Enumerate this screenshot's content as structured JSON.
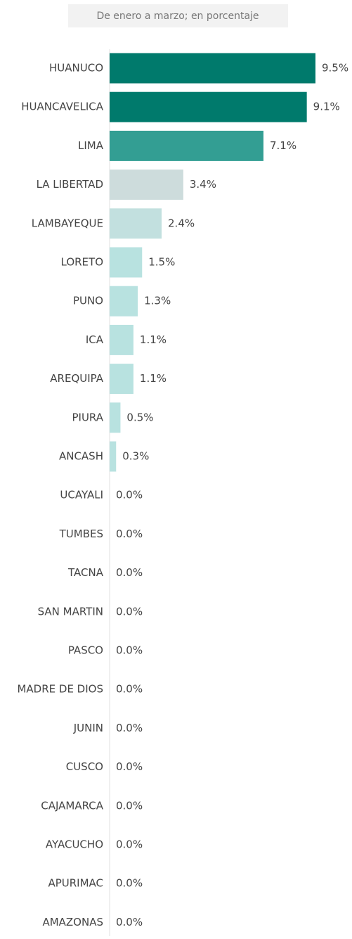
{
  "chart_data": {
    "type": "bar",
    "orientation": "horizontal",
    "subtitle": "De enero a marzo; en porcentaje",
    "categories": [
      "HUANUCO",
      "HUANCAVELICA",
      "LIMA",
      "LA LIBERTAD",
      "LAMBAYEQUE",
      "LORETO",
      "PUNO",
      "ICA",
      "AREQUIPA",
      "PIURA",
      "ANCASH",
      "UCAYALI",
      "TUMBES",
      "TACNA",
      "SAN MARTIN",
      "PASCO",
      "MADRE DE DIOS",
      "JUNIN",
      "CUSCO",
      "CAJAMARCA",
      "AYACUCHO",
      "APURIMAC",
      "AMAZONAS"
    ],
    "values": [
      9.5,
      9.1,
      7.1,
      3.4,
      2.4,
      1.5,
      1.3,
      1.1,
      1.1,
      0.5,
      0.3,
      0.0,
      0.0,
      0.0,
      0.0,
      0.0,
      0.0,
      0.0,
      0.0,
      0.0,
      0.0,
      0.0,
      0.0
    ],
    "value_labels": [
      "9.5%",
      "9.1%",
      "7.1%",
      "3.4%",
      "2.4%",
      "1.5%",
      "1.3%",
      "1.1%",
      "1.1%",
      "0.5%",
      "0.3%",
      "0.0%",
      "0.0%",
      "0.0%",
      "0.0%",
      "0.0%",
      "0.0%",
      "0.0%",
      "0.0%",
      "0.0%",
      "0.0%",
      "0.0%",
      "0.0%"
    ],
    "colors": [
      "#007a6c",
      "#007a6c",
      "#339e93",
      "#cddcdc",
      "#c2e0df",
      "#b8e2e0",
      "#b8e2e0",
      "#b8e2e0",
      "#b8e2e0",
      "#b8e2e0",
      "#b8e2e0",
      "#b8e2e0",
      "#b8e2e0",
      "#b8e2e0",
      "#b8e2e0",
      "#b8e2e0",
      "#b8e2e0",
      "#b8e2e0",
      "#b8e2e0",
      "#b8e2e0",
      "#b8e2e0",
      "#b8e2e0",
      "#b8e2e0"
    ]
  }
}
